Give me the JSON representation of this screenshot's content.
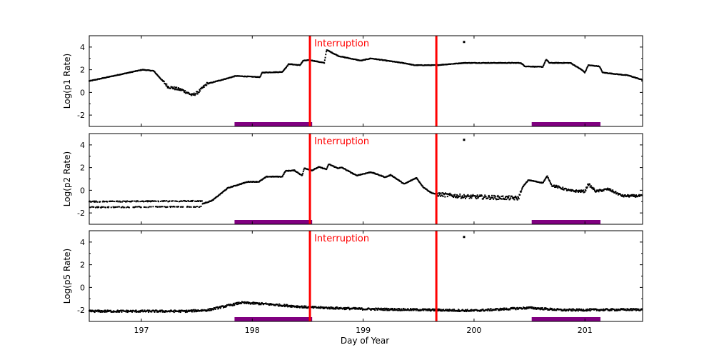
{
  "chart_data": {
    "type": "scatter",
    "xlabel": "Day of Year",
    "xlim": [
      196.53,
      201.52
    ],
    "xticks": [
      197,
      198,
      199,
      200,
      201
    ],
    "xtick_labels": [
      "197",
      "198",
      "199",
      "200",
      "201"
    ],
    "interruption_label": "Interruption",
    "interruptions": [
      198.52,
      199.66
    ],
    "interruption_color": "#ff0000",
    "shaded_intervals": [
      [
        197.84,
        198.54
      ],
      [
        200.52,
        201.14
      ]
    ],
    "shaded_color": "#800080",
    "marker_color": "#000000",
    "grid": false,
    "panels": [
      {
        "ylabel": "Log(p1 Rate)",
        "ylim": [
          -3,
          5
        ],
        "yticks": [
          -2,
          0,
          2,
          4
        ],
        "ytick_labels": [
          "-2",
          "0",
          "2",
          "4"
        ],
        "outlier": [
          199.91,
          4.45
        ],
        "trend": [
          [
            196.53,
            1.0
          ],
          [
            197.01,
            2.0
          ],
          [
            197.11,
            1.9
          ],
          [
            197.24,
            0.5
          ],
          [
            197.37,
            0.2
          ],
          [
            197.46,
            -0.25
          ],
          [
            197.51,
            0.0
          ],
          [
            197.59,
            0.75
          ],
          [
            197.78,
            1.25
          ],
          [
            197.85,
            1.45
          ],
          [
            198.07,
            1.35
          ],
          [
            198.09,
            1.75
          ],
          [
            198.27,
            1.8
          ],
          [
            198.33,
            2.5
          ],
          [
            198.43,
            2.4
          ],
          [
            198.46,
            2.8
          ],
          [
            198.52,
            2.85
          ],
          [
            198.65,
            2.6
          ],
          [
            198.67,
            3.75
          ],
          [
            198.78,
            3.2
          ],
          [
            198.98,
            2.8
          ],
          [
            199.07,
            3.0
          ],
          [
            199.39,
            2.55
          ],
          [
            199.46,
            2.4
          ],
          [
            199.66,
            2.4
          ],
          [
            199.91,
            2.6
          ],
          [
            200.42,
            2.6
          ],
          [
            200.46,
            2.3
          ],
          [
            200.62,
            2.25
          ],
          [
            200.65,
            2.9
          ],
          [
            200.68,
            2.6
          ],
          [
            200.87,
            2.6
          ],
          [
            200.97,
            2.0
          ],
          [
            201.0,
            1.75
          ],
          [
            201.03,
            2.4
          ],
          [
            201.13,
            2.3
          ],
          [
            201.16,
            1.75
          ],
          [
            201.39,
            1.5
          ],
          [
            201.52,
            1.1
          ]
        ]
      },
      {
        "ylabel": "Log(p2 Rate)",
        "ylim": [
          -3,
          5
        ],
        "yticks": [
          -2,
          0,
          2,
          4
        ],
        "ytick_labels": [
          "-2",
          "0",
          "2",
          "4"
        ],
        "outlier": [
          199.91,
          4.45
        ],
        "trend": [
          [
            196.53,
            -1.25
          ],
          [
            197.55,
            -1.2
          ],
          [
            197.64,
            -0.9
          ],
          [
            197.78,
            0.2
          ],
          [
            197.96,
            0.75
          ],
          [
            198.06,
            0.75
          ],
          [
            198.13,
            1.2
          ],
          [
            198.27,
            1.2
          ],
          [
            198.3,
            1.7
          ],
          [
            198.38,
            1.75
          ],
          [
            198.45,
            1.3
          ],
          [
            198.47,
            1.95
          ],
          [
            198.54,
            1.75
          ],
          [
            198.6,
            2.05
          ],
          [
            198.67,
            1.85
          ],
          [
            198.69,
            2.3
          ],
          [
            198.77,
            1.95
          ],
          [
            198.81,
            2.0
          ],
          [
            198.94,
            1.3
          ],
          [
            199.07,
            1.6
          ],
          [
            199.2,
            1.15
          ],
          [
            199.25,
            1.35
          ],
          [
            199.37,
            0.55
          ],
          [
            199.48,
            1.1
          ],
          [
            199.54,
            0.3
          ],
          [
            199.61,
            -0.2
          ],
          [
            199.66,
            -0.35
          ],
          [
            199.91,
            -0.55
          ],
          [
            200.4,
            -0.7
          ],
          [
            200.44,
            0.3
          ],
          [
            200.49,
            0.9
          ],
          [
            200.62,
            0.65
          ],
          [
            200.66,
            1.25
          ],
          [
            200.7,
            0.45
          ],
          [
            200.87,
            -0.05
          ],
          [
            201.0,
            -0.1
          ],
          [
            201.03,
            0.55
          ],
          [
            201.1,
            -0.1
          ],
          [
            201.21,
            0.1
          ],
          [
            201.34,
            -0.5
          ],
          [
            201.52,
            -0.5
          ]
        ]
      },
      {
        "ylabel": "Log(p5 Rate)",
        "ylim": [
          -3,
          5
        ],
        "yticks": [
          -2,
          0,
          2,
          4
        ],
        "ytick_labels": [
          "-2",
          "0",
          "2",
          "4"
        ],
        "outlier": [
          199.91,
          4.45
        ],
        "trend": [
          [
            196.53,
            -2.1
          ],
          [
            197.4,
            -2.1
          ],
          [
            197.6,
            -2.0
          ],
          [
            197.9,
            -1.35
          ],
          [
            198.1,
            -1.45
          ],
          [
            198.5,
            -1.75
          ],
          [
            199.0,
            -1.9
          ],
          [
            199.7,
            -2.0
          ],
          [
            200.0,
            -2.05
          ],
          [
            200.5,
            -1.8
          ],
          [
            200.8,
            -2.0
          ],
          [
            201.52,
            -1.95
          ]
        ]
      }
    ]
  }
}
